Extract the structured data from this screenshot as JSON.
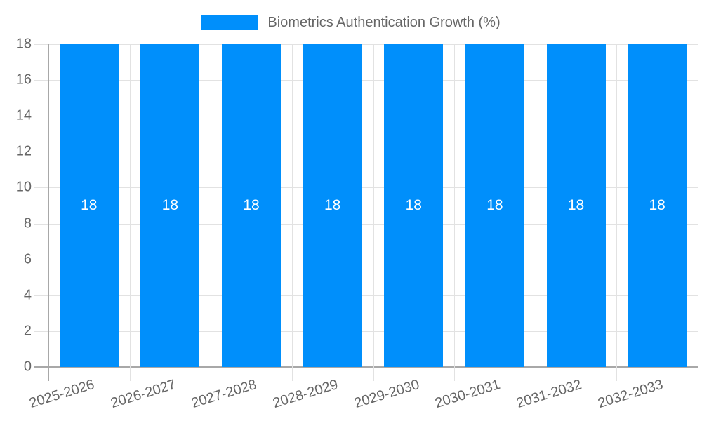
{
  "chart_data": {
    "type": "bar",
    "title": "",
    "legend": {
      "position": "top",
      "label": "Biometrics Authentication Growth (%)"
    },
    "categories": [
      "2025-2026",
      "2026-2027",
      "2027-2028",
      "2028-2029",
      "2029-2030",
      "2030-2031",
      "2031-2032",
      "2032-2033"
    ],
    "series": [
      {
        "name": "Biometrics Authentication Growth (%)",
        "values": [
          18,
          18,
          18,
          18,
          18,
          18,
          18,
          18
        ]
      }
    ],
    "value_labels": [
      "18",
      "18",
      "18",
      "18",
      "18",
      "18",
      "18",
      "18"
    ],
    "xlabel": "",
    "ylabel": "",
    "ylim": [
      0,
      18
    ],
    "yticks": [
      0,
      2,
      4,
      6,
      8,
      10,
      12,
      14,
      16,
      18
    ],
    "grid": true,
    "colors": {
      "bar": "#008FFB",
      "grid": "#e2e2e2",
      "axis": "#a8a8a8",
      "text": "#666666",
      "value_label": "#ffffff",
      "background": "#ffffff"
    }
  }
}
